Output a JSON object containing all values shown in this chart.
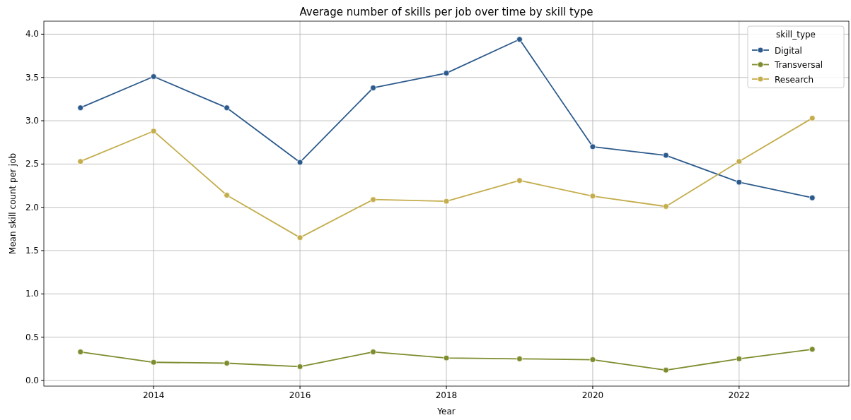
{
  "chart_data": {
    "type": "line",
    "title": "Average number of skills per job over time by skill type",
    "xlabel": "Year",
    "ylabel": "Mean skill count per job",
    "legend_title": "skill_type",
    "x": [
      2013,
      2014,
      2015,
      2016,
      2017,
      2018,
      2019,
      2020,
      2021,
      2022,
      2023
    ],
    "series": [
      {
        "name": "Digital",
        "color": "#2c5a8c",
        "values": [
          3.15,
          3.51,
          3.15,
          2.52,
          3.38,
          3.55,
          3.94,
          2.7,
          2.6,
          2.29,
          2.11
        ]
      },
      {
        "name": "Transversal",
        "color": "#7f8c2e",
        "values": [
          0.33,
          0.21,
          0.2,
          0.16,
          0.33,
          0.26,
          0.25,
          0.24,
          0.12,
          0.25,
          0.36
        ]
      },
      {
        "name": "Research",
        "color": "#c4ad4c",
        "values": [
          2.53,
          2.88,
          2.14,
          1.65,
          2.09,
          2.07,
          2.31,
          2.13,
          2.01,
          2.53,
          3.03
        ]
      }
    ],
    "xlim": [
      2012.5,
      2023.5
    ],
    "xticks": [
      2014,
      2016,
      2018,
      2020,
      2022
    ],
    "ylim": [
      -0.065,
      4.15
    ],
    "yticks": [
      {
        "value": 0,
        "label": "0.0"
      },
      {
        "value": 0.5,
        "label": "0.5"
      },
      {
        "value": 1,
        "label": "1.0"
      },
      {
        "value": 1.5,
        "label": "1.5"
      },
      {
        "value": 2,
        "label": "2.0"
      },
      {
        "value": 2.5,
        "label": "2.5"
      },
      {
        "value": 3,
        "label": "3.0"
      },
      {
        "value": 3.5,
        "label": "3.5"
      },
      {
        "value": 4,
        "label": "4.0"
      }
    ],
    "grid": true,
    "legend": "top right",
    "marker": "circle",
    "line_style": "solid"
  }
}
